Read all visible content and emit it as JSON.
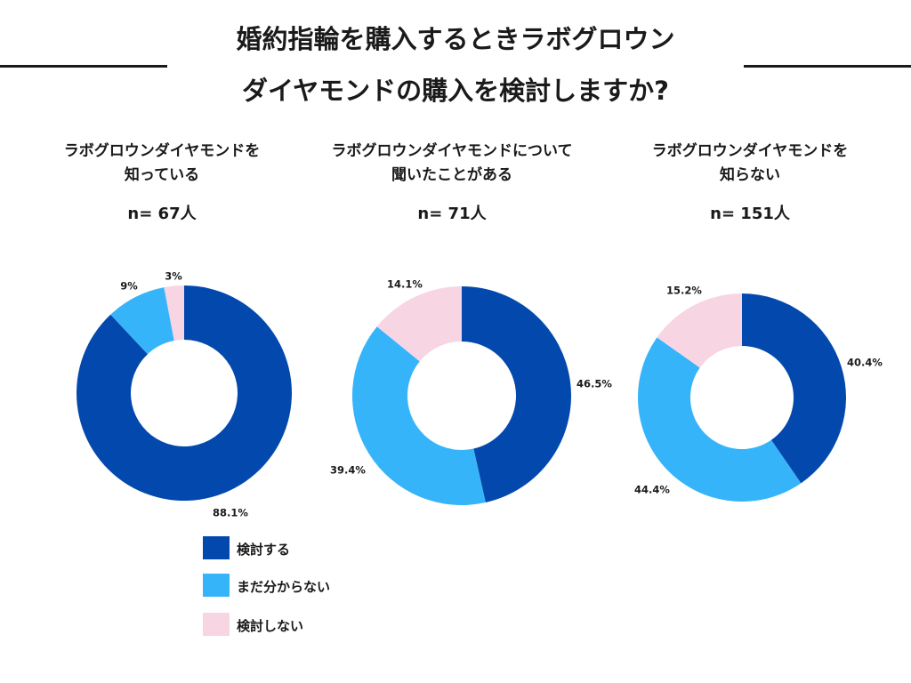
{
  "title": {
    "line1": "婚約指輪を購入するときラボグロウン",
    "line2": "ダイヤモンドの購入を検討しますか?"
  },
  "colors": {
    "consider": "#0349ad",
    "undecided": "#36b4fa",
    "not_consider": "#f7d5e3"
  },
  "legend": [
    {
      "label": "検討する",
      "color": "#0349ad"
    },
    {
      "label": " まだ分からない",
      "color": "#36b4fa"
    },
    {
      "label": "検討しない",
      "color": "#f7d5e3"
    }
  ],
  "chart_data": [
    {
      "type": "donut",
      "heading_line1": "ラボグロウンダイヤモンドを",
      "heading_line2": "知っている",
      "n_label": "n= 67人",
      "categories": [
        "検討する",
        "まだ分からない",
        "検討しない"
      ],
      "values": [
        88.1,
        9,
        3
      ],
      "value_labels": [
        "88.1%",
        "9%",
        "3%"
      ]
    },
    {
      "type": "donut",
      "heading_line1": "ラボグロウンダイヤモンドについて",
      "heading_line2": "聞いたことがある",
      "n_label": "n= 71人",
      "categories": [
        "検討する",
        "まだ分からない",
        "検討しない"
      ],
      "values": [
        46.5,
        39.4,
        14.1
      ],
      "value_labels": [
        "46.5%",
        "39.4%",
        "14.1%"
      ]
    },
    {
      "type": "donut",
      "heading_line1": "ラボグロウンダイヤモンドを",
      "heading_line2": "知らない",
      "n_label": "n= 151人",
      "categories": [
        "検討する",
        "まだ分からない",
        "検討しない"
      ],
      "values": [
        40.4,
        44.4,
        15.2
      ],
      "value_labels": [
        "40.4%",
        "44.4%",
        "15.2%"
      ]
    }
  ]
}
